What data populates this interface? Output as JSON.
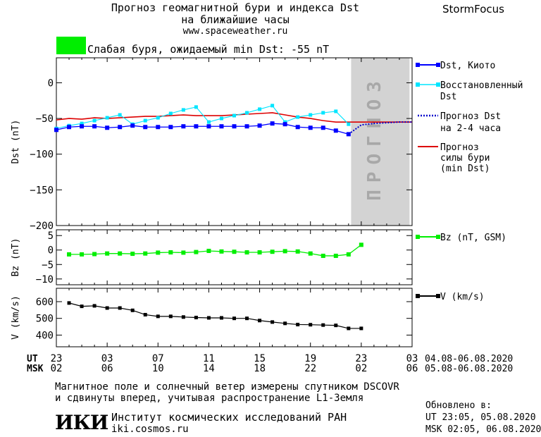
{
  "header": {
    "title_line1": "Прогноз геомагнитной бури и индекса Dst",
    "title_line2": "на ближайшие часы",
    "site": "www.spaceweather.ru",
    "brand": "StormFocus"
  },
  "status": {
    "color": "#00ee00",
    "text": "Слабая буря, ожидаемый min Dst: -55 nT"
  },
  "colors": {
    "dst": "#0000ff",
    "restored": "#00e5ff",
    "forecast": "#0000cc",
    "storm": "#dd0000",
    "bz": "#00ee00",
    "v": "#000000",
    "forecast_band": "#d3d3d3"
  },
  "chart_data": [
    {
      "type": "line",
      "ylabel": "Dst (nT)",
      "ylim": [
        -200,
        35
      ],
      "yticks": [
        0,
        -50,
        -100,
        -150,
        -200
      ],
      "xlim": [
        0,
        28
      ],
      "forecast_region": [
        23.2,
        27.8
      ],
      "forecast_label": "ПРОГНОЗ",
      "series": [
        {
          "name": "Dst, Киото",
          "x": [
            0,
            1,
            2,
            3,
            4,
            5,
            6,
            7,
            8,
            9,
            10,
            11,
            12,
            13,
            14,
            15,
            16,
            17,
            18,
            19,
            20,
            21,
            22,
            23
          ],
          "values": [
            -66,
            -62,
            -61,
            -61,
            -63,
            -62,
            -60,
            -62,
            -62,
            -62,
            -61,
            -61,
            -61,
            -61,
            -61,
            -61,
            -60,
            -57,
            -58,
            -62,
            -63,
            -63,
            -67,
            -72
          ]
        },
        {
          "name": "Восстановленный Dst",
          "x": [
            0,
            1,
            2,
            3,
            4,
            5,
            6,
            7,
            8,
            9,
            10,
            11,
            12,
            13,
            14,
            15,
            16,
            17,
            18,
            19,
            20,
            21,
            22,
            23
          ],
          "values": [
            -64,
            -60,
            -57,
            -53,
            -49,
            -45,
            -58,
            -53,
            -49,
            -43,
            -38,
            -34,
            -55,
            -50,
            -46,
            -42,
            -37,
            -32,
            -55,
            -48,
            -45,
            -42,
            -40,
            -58
          ]
        },
        {
          "name": "Прогноз Dst на 2-4 часа",
          "x": [
            23,
            24,
            25,
            26,
            27,
            28
          ],
          "values": [
            -72,
            -59,
            -57,
            -56,
            -55,
            -55
          ]
        },
        {
          "name": "Прогноз силы бури (min Dst)",
          "x": [
            0,
            1,
            2,
            3,
            4,
            5,
            6,
            7,
            8,
            9,
            10,
            11,
            12,
            13,
            14,
            15,
            16,
            17,
            18,
            19,
            20,
            21,
            22,
            23,
            24,
            25,
            26,
            27,
            28
          ],
          "values": [
            -52,
            -50,
            -51,
            -49,
            -50,
            -49,
            -48,
            -47,
            -47,
            -46,
            -45,
            -46,
            -46,
            -46,
            -45,
            -44,
            -43,
            -42,
            -45,
            -48,
            -50,
            -53,
            -55,
            -55,
            -55,
            -55,
            -55,
            -55,
            -55
          ]
        }
      ]
    },
    {
      "type": "line",
      "ylabel": "Bz (nT)",
      "ylim": [
        -12,
        7
      ],
      "yticks": [
        5,
        0,
        -5,
        -10
      ],
      "series": [
        {
          "name": "Bz (nT, GSM)",
          "x": [
            1,
            2,
            3,
            4,
            5,
            6,
            7,
            8,
            9,
            10,
            11,
            12,
            13,
            14,
            15,
            16,
            17,
            18,
            19,
            20,
            21,
            22,
            23,
            24
          ],
          "values": [
            -1.5,
            -1.5,
            -1.4,
            -1.2,
            -1.2,
            -1.3,
            -1.2,
            -0.9,
            -0.8,
            -0.9,
            -0.7,
            -0.3,
            -0.5,
            -0.6,
            -0.8,
            -0.8,
            -0.6,
            -0.4,
            -0.5,
            -1.2,
            -2.0,
            -2.0,
            -1.5,
            1.8
          ]
        }
      ]
    },
    {
      "type": "line",
      "ylabel": "V (km/s)",
      "ylim": [
        330,
        680
      ],
      "yticks": [
        600,
        500,
        400
      ],
      "series": [
        {
          "name": "V (km/s)",
          "x": [
            1,
            2,
            3,
            4,
            5,
            6,
            7,
            8,
            9,
            10,
            11,
            12,
            13,
            14,
            15,
            16,
            17,
            18,
            19,
            20,
            21,
            22,
            23,
            24
          ],
          "values": [
            592,
            572,
            575,
            562,
            562,
            548,
            522,
            512,
            512,
            508,
            505,
            503,
            503,
            500,
            500,
            487,
            478,
            470,
            463,
            462,
            460,
            458,
            440,
            440
          ]
        }
      ]
    },
    {
      "type": "axis",
      "x_tick_labels_ut": [
        "23",
        "03",
        "07",
        "11",
        "15",
        "19",
        "23",
        "03"
      ],
      "x_tick_labels_msk": [
        "02",
        "06",
        "10",
        "14",
        "18",
        "22",
        "02",
        "06"
      ],
      "ut_label": "UT",
      "msk_label": "MSK",
      "ut_range": "04.08-06.08.2020",
      "msk_range": "05.08-06.08.2020"
    }
  ],
  "legends": {
    "dst": "Dst, Киото",
    "restored_1": "Восстановленный",
    "restored_2": "Dst",
    "forecast_1": "Прогноз Dst",
    "forecast_2": "на 2-4 часа",
    "storm_1": "Прогноз",
    "storm_2": "силы бури",
    "storm_3": "(min Dst)",
    "bz": "Bz (nT, GSM)",
    "v": "V (km/s)"
  },
  "footer": {
    "note_line1": "Магнитное поле и солнечный ветер измерены спутником DSCOVR",
    "note_line2": "и сдвинуты вперед, учитывая распространение L1-Земля",
    "logo": "ИКИ",
    "institute": "Институт космических исследований РАН",
    "institute_url": "iki.cosmos.ru",
    "updated_label": "Обновлено в:",
    "updated_ut": "UT  23:05, 05.08.2020",
    "updated_msk": "MSK 02:05, 06.08.2020"
  }
}
